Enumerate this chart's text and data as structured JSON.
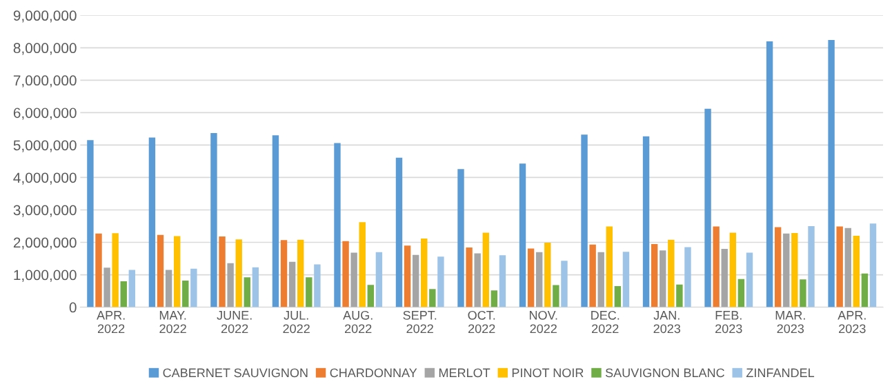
{
  "chart_data": {
    "type": "bar",
    "categories": [
      "APR.\n2022",
      "MAY.\n2022",
      "JUNE.\n2022",
      "JUL.\n2022",
      "AUG.\n2022",
      "SEPT.\n2022",
      "OCT.\n2022",
      "NOV.\n2022",
      "DEC.\n2022",
      "JAN.\n2023",
      "FEB.\n2023",
      "MAR.\n2023",
      "APR.\n2023"
    ],
    "series": [
      {
        "name": "CABERNET SAUVIGNON",
        "color": "#5b9bd5",
        "values": [
          5150000,
          5230000,
          5370000,
          5300000,
          5060000,
          4610000,
          4260000,
          4430000,
          5320000,
          5270000,
          6120000,
          8200000,
          8240000
        ]
      },
      {
        "name": "CHARDONNAY",
        "color": "#ed7d31",
        "values": [
          2270000,
          2230000,
          2180000,
          2070000,
          2040000,
          1900000,
          1840000,
          1810000,
          1930000,
          1950000,
          2490000,
          2470000,
          2490000
        ]
      },
      {
        "name": "MERLOT",
        "color": "#a5a5a5",
        "values": [
          1220000,
          1150000,
          1360000,
          1400000,
          1680000,
          1610000,
          1660000,
          1700000,
          1700000,
          1750000,
          1800000,
          2270000,
          2440000
        ]
      },
      {
        "name": "PINOT NOIR",
        "color": "#ffc000",
        "values": [
          2280000,
          2190000,
          2090000,
          2080000,
          2620000,
          2120000,
          2300000,
          1990000,
          2490000,
          2080000,
          2300000,
          2290000,
          2200000
        ]
      },
      {
        "name": "SAUVIGNON BLANC",
        "color": "#70ad47",
        "values": [
          800000,
          820000,
          920000,
          920000,
          690000,
          560000,
          520000,
          680000,
          650000,
          700000,
          870000,
          860000,
          1040000
        ]
      },
      {
        "name": "ZINFANDEL",
        "color": "#9dc3e6",
        "values": [
          1150000,
          1190000,
          1230000,
          1320000,
          1700000,
          1560000,
          1600000,
          1430000,
          1710000,
          1850000,
          1680000,
          2500000,
          2580000
        ]
      }
    ],
    "ylim": [
      0,
      9000000
    ],
    "yticks": [
      {
        "value": 0,
        "label": "0"
      },
      {
        "value": 1000000,
        "label": "1,000,000"
      },
      {
        "value": 2000000,
        "label": "2,000,000"
      },
      {
        "value": 3000000,
        "label": "3,000,000"
      },
      {
        "value": 4000000,
        "label": "4,000,000"
      },
      {
        "value": 5000000,
        "label": "5,000,000"
      },
      {
        "value": 6000000,
        "label": "6,000,000"
      },
      {
        "value": 7000000,
        "label": "7,000,000"
      },
      {
        "value": 8000000,
        "label": "8,000,000"
      },
      {
        "value": 9000000,
        "label": "9,000,000"
      }
    ],
    "grid": "y",
    "legend": "bottom"
  }
}
